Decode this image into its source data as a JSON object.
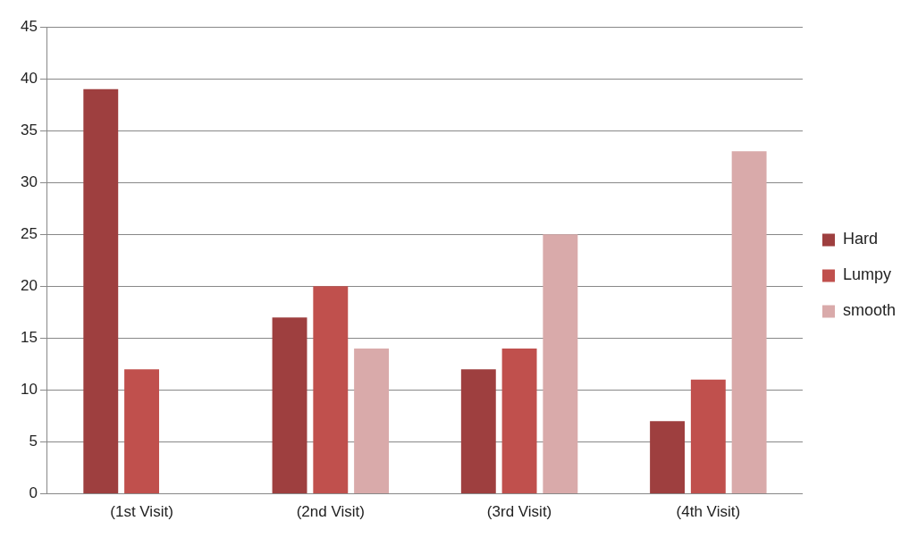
{
  "chart_data": {
    "type": "bar",
    "categories": [
      "(1st Visit)",
      "(2nd Visit)",
      "(3rd Visit)",
      "(4th Visit)"
    ],
    "series": [
      {
        "name": "Hard",
        "color": "#9e3f3f",
        "values": [
          39,
          17,
          12,
          7
        ]
      },
      {
        "name": "Lumpy",
        "color": "#c0504d",
        "values": [
          12,
          20,
          14,
          11
        ]
      },
      {
        "name": "smooth",
        "color": "#d9aaaa",
        "values": [
          null,
          14,
          25,
          33
        ]
      }
    ],
    "ylim": [
      0,
      45
    ],
    "yticks": [
      0,
      5,
      10,
      15,
      20,
      25,
      30,
      35,
      40,
      45
    ],
    "grid": "y",
    "legend": "right"
  }
}
